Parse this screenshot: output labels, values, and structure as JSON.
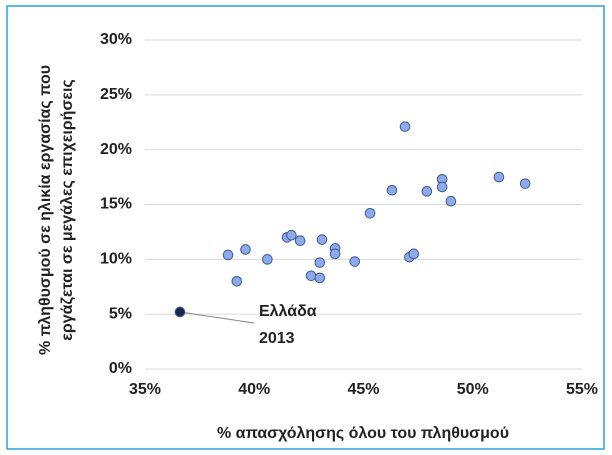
{
  "chart_data": {
    "type": "scatter",
    "xlabel": "% απασχόλησης όλου του πληθυσμού",
    "ylabel": [
      "% πληθυσμού σε ηλικία εργασίας που",
      "εργάζεται σε μεγάλες επιχειρήσεις"
    ],
    "x": [
      38.8,
      39.2,
      39.6,
      40.6,
      41.5,
      41.7,
      42.1,
      42.6,
      43.0,
      43.1,
      43.0,
      43.7,
      43.7,
      44.6,
      45.3,
      46.3,
      46.9,
      47.1,
      47.3,
      47.9,
      48.6,
      48.6,
      49.0,
      51.2,
      52.4
    ],
    "y": [
      10.4,
      8.0,
      10.9,
      10.0,
      12.0,
      12.2,
      11.7,
      8.5,
      9.7,
      11.8,
      8.3,
      11.0,
      10.5,
      9.8,
      14.2,
      16.3,
      22.1,
      10.2,
      10.5,
      16.2,
      17.3,
      16.6,
      15.3,
      17.5,
      16.9
    ],
    "color": "#8eaae8",
    "annotation": {
      "text": [
        "Ελλάδα",
        "2013"
      ],
      "x": 36.6,
      "y": 5.2,
      "color": "#1b2a48"
    },
    "xlim": [
      35,
      55
    ],
    "xticks": [
      {
        "value": 35,
        "label": "35%"
      },
      {
        "value": 40,
        "label": "40%"
      },
      {
        "value": 45,
        "label": "45%"
      },
      {
        "value": 50,
        "label": "50%"
      },
      {
        "value": 55,
        "label": "55%"
      }
    ],
    "ylim": [
      0,
      30
    ],
    "yticks": [
      {
        "value": 0,
        "label": "0%"
      },
      {
        "value": 5,
        "label": "5%"
      },
      {
        "value": 10,
        "label": "10%"
      },
      {
        "value": 15,
        "label": "15%"
      },
      {
        "value": 20,
        "label": "20%"
      },
      {
        "value": 25,
        "label": "25%"
      },
      {
        "value": 30,
        "label": "30%"
      }
    ],
    "grid": true
  }
}
